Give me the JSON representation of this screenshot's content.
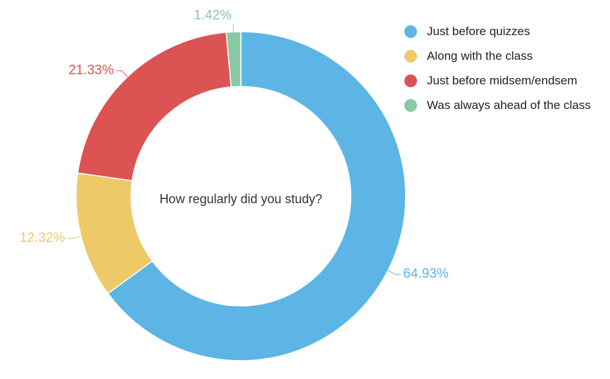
{
  "chart_data": {
    "type": "pie",
    "variant": "donut",
    "center_text": "How regularly did you study?",
    "slices": [
      {
        "label": "Just before quizzes",
        "value": 64.93,
        "value_label": "64.93%",
        "color": "#5DB5E5"
      },
      {
        "label": "Along with the class",
        "value": 12.32,
        "value_label": "12.32%",
        "color": "#EDC968"
      },
      {
        "label": "Just before midsem/endsem",
        "value": 21.33,
        "value_label": "21.33%",
        "color": "#DB5353"
      },
      {
        "label": "Was always ahead of the class",
        "value": 1.42,
        "value_label": "1.42%",
        "color": "#88C9A4"
      }
    ],
    "legend_position": "top-right"
  }
}
